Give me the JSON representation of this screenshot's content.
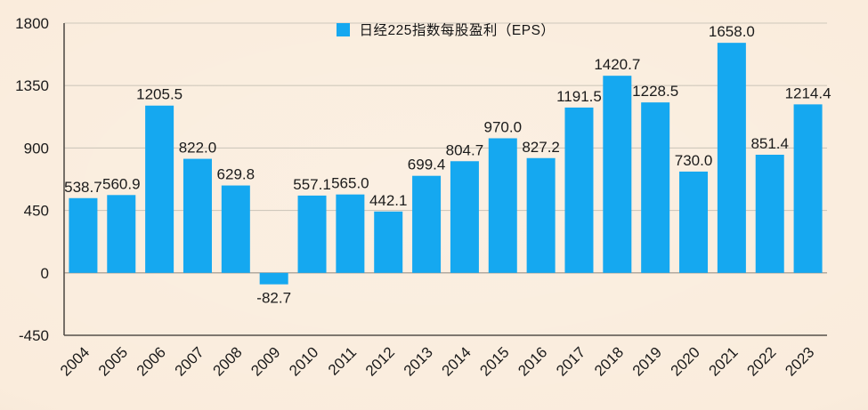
{
  "chart_data": {
    "type": "bar",
    "legend": "日经225指数每股盈利（EPS）",
    "categories": [
      "2004",
      "2005",
      "2006",
      "2007",
      "2008",
      "2009",
      "2010",
      "2011",
      "2012",
      "2013",
      "2014",
      "2015",
      "2016",
      "2017",
      "2018",
      "2019",
      "2020",
      "2021",
      "2022",
      "2023"
    ],
    "values": [
      538.7,
      560.9,
      1205.5,
      822.0,
      629.8,
      -82.7,
      557.1,
      565.0,
      442.1,
      699.4,
      804.7,
      970.0,
      827.2,
      1191.5,
      1420.7,
      1228.5,
      730.0,
      1658.0,
      851.4,
      1214.4
    ],
    "value_label_decimals": 1,
    "ylim": [
      -450,
      1800
    ],
    "yticks": [
      -450,
      0,
      450,
      900,
      1350,
      1800
    ],
    "grid": true,
    "legend_position": "top-center",
    "x_label_rotation_deg": -45,
    "colors": {
      "bar": "#15a8f0",
      "background": "#faecdc",
      "gridline": "#cfc8bc",
      "zero_line": "#9a948a",
      "axis": "#55504a",
      "text": "#1b1b1b"
    }
  }
}
